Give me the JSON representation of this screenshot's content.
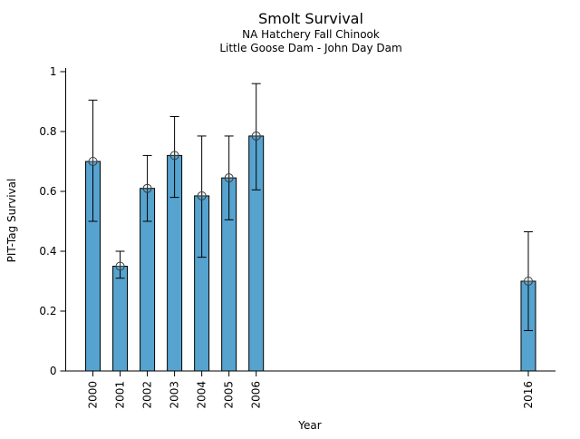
{
  "chart_data": {
    "type": "bar",
    "title": "Smolt Survival",
    "subtitle1": "NA Hatchery Fall Chinook",
    "subtitle2": "Little Goose Dam - John Day Dam",
    "xlabel": "Year",
    "ylabel": "PIT-Tag Survival",
    "ylim": [
      0,
      1
    ],
    "xlim": [
      1999,
      2017
    ],
    "yticks": [
      0,
      0.2,
      0.4,
      0.6,
      0.8,
      1
    ],
    "ytick_labels": [
      "0",
      "0.2",
      "0.4",
      "0.6",
      "0.8",
      "1"
    ],
    "grid": false,
    "legend": "none",
    "marker": "circle-plus",
    "bar_color": "#56A3CF",
    "bar_edge_color": "#000000",
    "error_bar_color": "#000000",
    "marker_color": "#3a3a3a",
    "categories": [
      2000,
      2001,
      2002,
      2003,
      2004,
      2005,
      2006,
      2016
    ],
    "values": [
      0.7,
      0.35,
      0.61,
      0.72,
      0.585,
      0.645,
      0.785,
      0.3
    ],
    "error_low": [
      0.5,
      0.31,
      0.5,
      0.58,
      0.38,
      0.505,
      0.605,
      0.135
    ],
    "error_high": [
      0.905,
      0.4,
      0.72,
      0.85,
      0.785,
      0.785,
      0.96,
      0.465
    ]
  }
}
